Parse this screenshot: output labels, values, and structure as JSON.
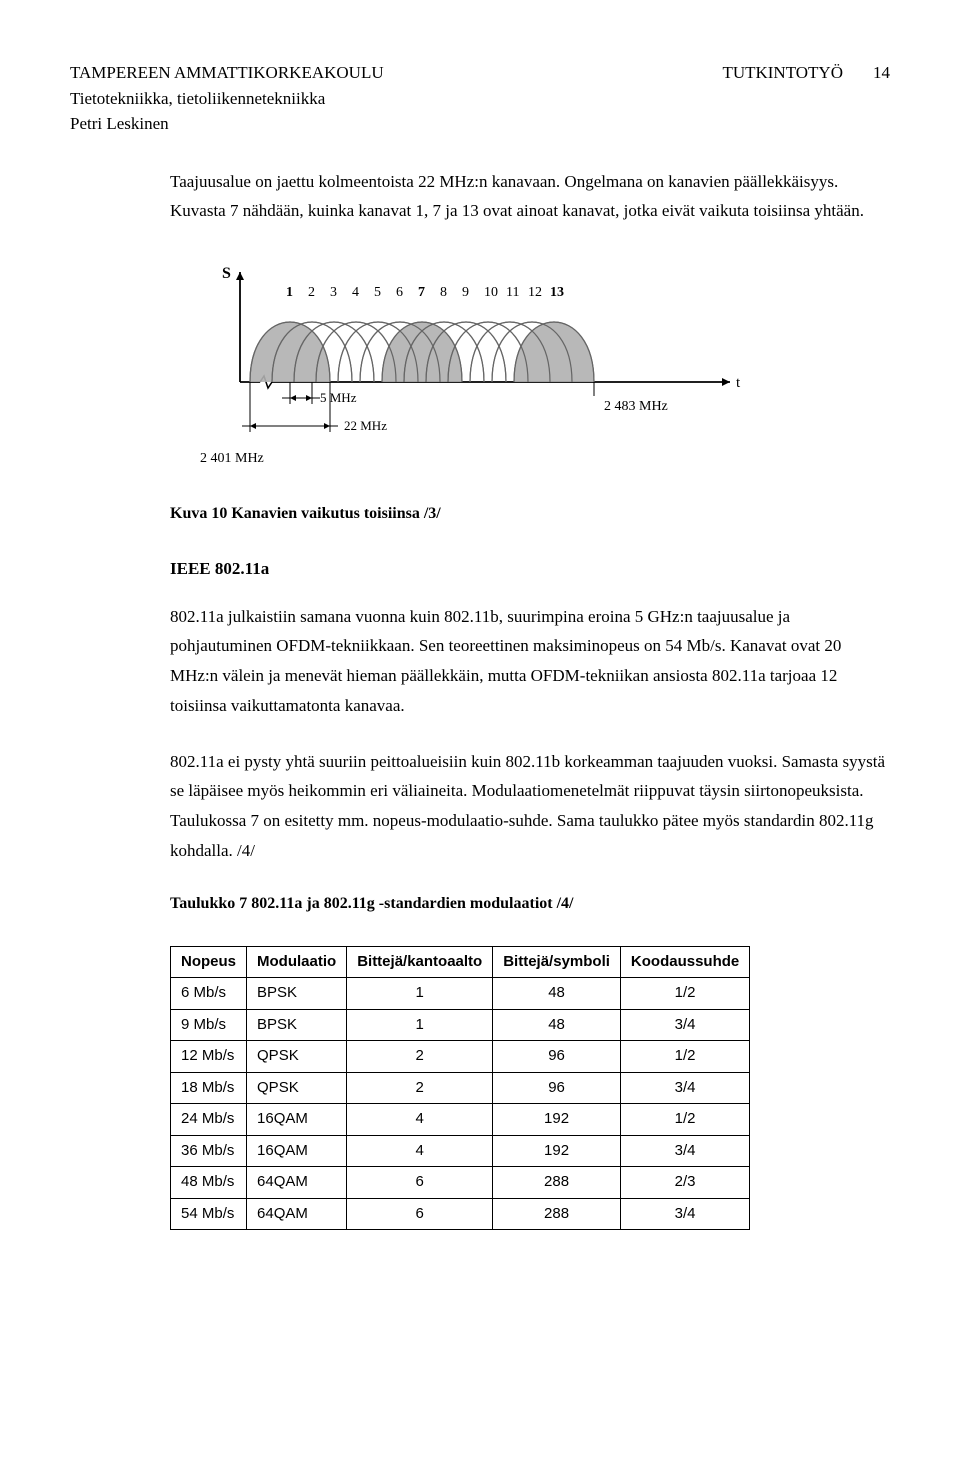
{
  "header": {
    "university": "TAMPEREEN AMMATTIKORKEAKOULU",
    "department": "Tietotekniikka, tietoliikennetekniikka",
    "author": "Petri Leskinen",
    "work_type": "TUTKINTOTYÖ",
    "page_number": "14"
  },
  "para1": "Taajuusalue on jaettu kolmeentoista 22 MHz:n kanavaan. Ongelmana on kanavien päällekkäisyys. Kuvasta 7 nähdään, kuinka kanavat 1, 7 ja 13 ovat ainoat kanavat, jotka eivät vaikuta toisiinsa yhtään.",
  "figure10": {
    "caption": "Kuva 10 Kanavien vaikutus toisiinsa /3/",
    "y_axis_label": "S",
    "x_axis_label": "t",
    "channel_labels": [
      "1",
      "2",
      "3",
      "4",
      "5",
      "6",
      "7",
      "8",
      "9",
      "10",
      "11",
      "12",
      "13"
    ],
    "tick_labels": {
      "start_freq": "2 401 MHz",
      "lobe_width": "5 MHz",
      "channel_width": "22 MHz",
      "end_freq": "2 483 MHz"
    },
    "colors": {
      "background": "#ffffff",
      "axis": "#000000",
      "lobe_outline": "#666666",
      "lobe_fill_highlight": "#b0b0b0",
      "lobe_fill_normal": "none"
    },
    "highlighted_channels": [
      1,
      7,
      13
    ]
  },
  "section_heading": "IEEE 802.11a",
  "para2": "802.11a julkaistiin samana vuonna kuin 802.11b, suurimpina eroina 5 GHz:n taajuusalue ja pohjautuminen OFDM-tekniikkaan. Sen teoreettinen maksiminopeus on 54 Mb/s. Kanavat ovat 20 MHz:n välein ja menevät hieman päällekkäin, mutta OFDM-tekniikan ansiosta 802.11a tarjoaa 12 toisiinsa vaikuttamatonta kanavaa.",
  "para3": "802.11a ei pysty yhtä suuriin peittoalueisiin kuin 802.11b korkeamman taajuuden vuoksi. Samasta syystä se läpäisee myös heikommin eri väliaineita. Modulaatiomenetelmät riippuvat täysin siirtonopeuksista. Taulukossa 7 on esitetty mm. nopeus-modulaatio-suhde. Sama taulukko pätee myös standardin 802.11g kohdalla. /4/",
  "table7": {
    "caption": "Taulukko 7 802.11a ja 802.11g -standardien modulaatiot /4/",
    "columns": [
      "Nopeus",
      "Modulaatio",
      "Bittejä/kantoaalto",
      "Bittejä/symboli",
      "Koodaussuhde"
    ],
    "rows": [
      [
        "6 Mb/s",
        "BPSK",
        "1",
        "48",
        "1/2"
      ],
      [
        "9 Mb/s",
        "BPSK",
        "1",
        "48",
        "3/4"
      ],
      [
        "12 Mb/s",
        "QPSK",
        "2",
        "96",
        "1/2"
      ],
      [
        "18 Mb/s",
        "QPSK",
        "2",
        "96",
        "3/4"
      ],
      [
        "24 Mb/s",
        "16QAM",
        "4",
        "192",
        "1/2"
      ],
      [
        "36 Mb/s",
        "16QAM",
        "4",
        "192",
        "3/4"
      ],
      [
        "48 Mb/s",
        "64QAM",
        "6",
        "288",
        "2/3"
      ],
      [
        "54 Mb/s",
        "64QAM",
        "6",
        "288",
        "3/4"
      ]
    ]
  }
}
